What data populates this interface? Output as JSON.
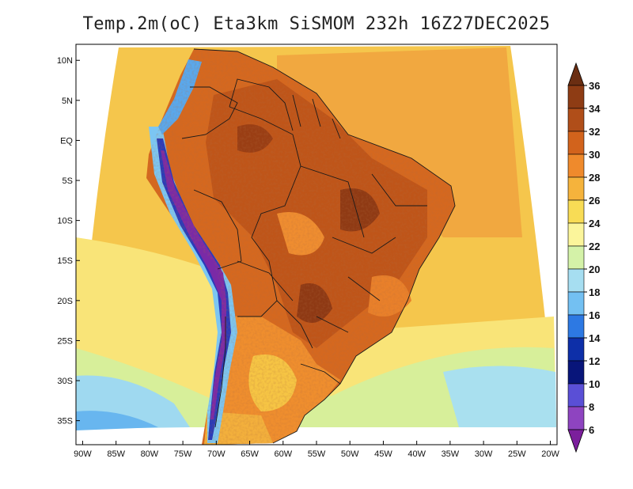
{
  "title": "Temp.2m(oC) Eta3km SiSMOM 232h 16Z27DEC2025",
  "map": {
    "variable": "2 m air temperature",
    "units": "°C",
    "model": "Eta3km SiSMOM",
    "lat_range": [
      -38,
      12
    ],
    "lon_range": [
      -91,
      -19
    ],
    "lat_ticks": [
      {
        "value": 10,
        "label": "10N"
      },
      {
        "value": 5,
        "label": "5N"
      },
      {
        "value": 0,
        "label": "EQ"
      },
      {
        "value": -5,
        "label": "5S"
      },
      {
        "value": -10,
        "label": "10S"
      },
      {
        "value": -15,
        "label": "15S"
      },
      {
        "value": -20,
        "label": "20S"
      },
      {
        "value": -25,
        "label": "25S"
      },
      {
        "value": -30,
        "label": "30S"
      },
      {
        "value": -35,
        "label": "35S"
      }
    ],
    "lon_ticks": [
      {
        "value": -90,
        "label": "90W"
      },
      {
        "value": -85,
        "label": "85W"
      },
      {
        "value": -80,
        "label": "80W"
      },
      {
        "value": -75,
        "label": "75W"
      },
      {
        "value": -70,
        "label": "70W"
      },
      {
        "value": -65,
        "label": "65W"
      },
      {
        "value": -60,
        "label": "60W"
      },
      {
        "value": -55,
        "label": "55W"
      },
      {
        "value": -50,
        "label": "50W"
      },
      {
        "value": -45,
        "label": "45W"
      },
      {
        "value": -40,
        "label": "40W"
      },
      {
        "value": -35,
        "label": "35W"
      },
      {
        "value": -30,
        "label": "30W"
      },
      {
        "value": -25,
        "label": "25W"
      },
      {
        "value": -20,
        "label": "20W"
      }
    ]
  },
  "colorbar": {
    "labels": [
      "36",
      "34",
      "32",
      "30",
      "28",
      "26",
      "24",
      "22",
      "20",
      "18",
      "16",
      "14",
      "12",
      "10",
      "8",
      "6"
    ],
    "colors": [
      "#6b2e12",
      "#8e3c14",
      "#b04e19",
      "#d2631c",
      "#ef8a2c",
      "#f5b33c",
      "#f8dc55",
      "#fbf59b",
      "#d4f2a8",
      "#a6def1",
      "#73c0f2",
      "#2d79e3",
      "#0d2fa8",
      "#08157a",
      "#5a4fd6",
      "#8e44c0",
      "#a63dbd",
      "#7b1f9c"
    ]
  }
}
